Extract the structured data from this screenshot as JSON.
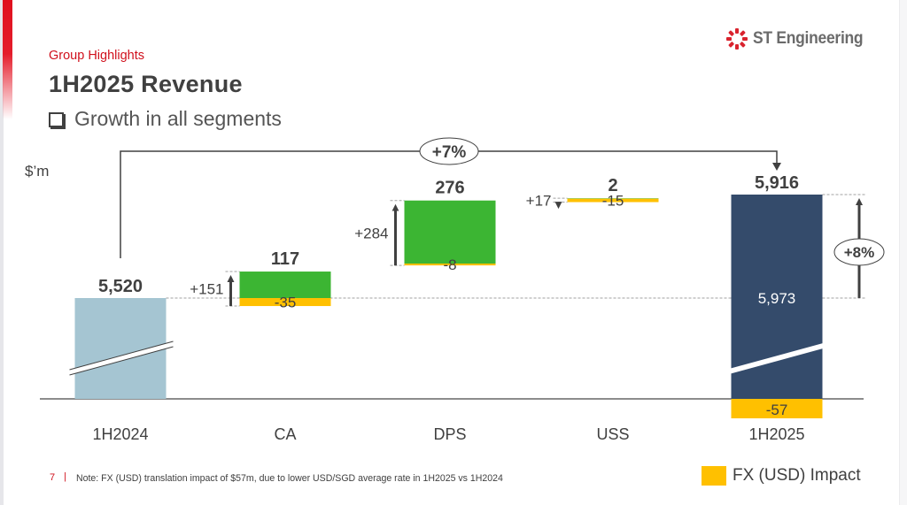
{
  "header": {
    "section": "Group Highlights",
    "title": "1H2025 Revenue",
    "bullet": "Growth in all segments"
  },
  "logo": {
    "text": "ST Engineering",
    "icon": "st-engineering-logo-icon"
  },
  "footer": {
    "page_number": "7",
    "separator": "|",
    "note": "Note: FX (USD) translation impact of $57m, due to lower USD/SGD average rate in 1H2025 vs 1H2024"
  },
  "legend": {
    "label": "FX (USD) Impact",
    "color": "#ffc000"
  },
  "colors": {
    "base_bar": "#a5c5d2",
    "growth": "#3cb533",
    "fx": "#ffc000",
    "end_bar": "#344b6b",
    "text": "#404040",
    "accent_red": "#d0101c"
  },
  "chart_data": {
    "type": "bar",
    "subtype": "waterfall",
    "title": "1H2025 Revenue",
    "ylabel": "$'m",
    "unit_label": "$’m",
    "categories": [
      "1H2024",
      "CA",
      "DPS",
      "USS",
      "1H2025"
    ],
    "axis_break": true,
    "start": {
      "category": "1H2024",
      "value": 5520,
      "label": "5,520"
    },
    "segments": [
      {
        "category": "CA",
        "organic": 151,
        "fx": -35,
        "net": 117,
        "organic_label": "+151",
        "fx_label": "-35",
        "net_label": "117"
      },
      {
        "category": "DPS",
        "organic": 284,
        "fx": -8,
        "net": 276,
        "organic_label": "+284",
        "fx_label": "-8",
        "net_label": "276"
      },
      {
        "category": "USS",
        "organic": 17,
        "fx": -15,
        "net": 2,
        "organic_label": "+17",
        "fx_label": "-15",
        "net_label": "2"
      }
    ],
    "end": {
      "category": "1H2025",
      "value": 5916,
      "label": "5,916",
      "before_fx": 5973,
      "before_fx_label": "5,973",
      "fx": -57,
      "fx_label": "-57"
    },
    "annotations": {
      "overall_growth": "+7%",
      "organic_growth": "+8%"
    },
    "legend": [
      "FX (USD) Impact"
    ],
    "legend_position": "bottom-right"
  }
}
